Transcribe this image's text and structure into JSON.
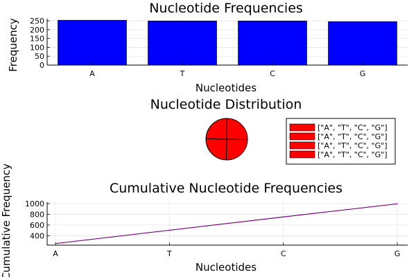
{
  "chart_data": [
    {
      "type": "bar",
      "title": "Nucleotide Frequencies",
      "xlabel": "Nucleotides",
      "ylabel": "Frequency",
      "categories": [
        "A",
        "T",
        "C",
        "G"
      ],
      "values": [
        253,
        249,
        249,
        245
      ],
      "ylim": [
        0,
        262
      ],
      "yticks": [
        0,
        50,
        100,
        150,
        200,
        250
      ],
      "color": "#0000ff",
      "grid": true
    },
    {
      "type": "pie",
      "title": "Nucleotide Distribution",
      "labels": [
        "[\"A\", \"T\", \"C\", \"G\"]",
        "[\"A\", \"T\", \"C\", \"G\"]",
        "[\"A\", \"T\", \"C\", \"G\"]",
        "[\"A\", \"T\", \"C\", \"G\"]"
      ],
      "values": [
        253,
        249,
        249,
        245
      ],
      "color": "#ff0000",
      "legend_position": "right"
    },
    {
      "type": "line",
      "title": "Cumulative Nucleotide Frequencies",
      "xlabel": "Nucleotides",
      "ylabel": "Cumulative Frequency",
      "categories": [
        "A",
        "T",
        "C",
        "G"
      ],
      "values": [
        253,
        502,
        751,
        996
      ],
      "ylim": [
        223,
        1026
      ],
      "yticks": [
        400,
        600,
        800,
        1000
      ],
      "color": "#800080",
      "grid": true
    }
  ]
}
